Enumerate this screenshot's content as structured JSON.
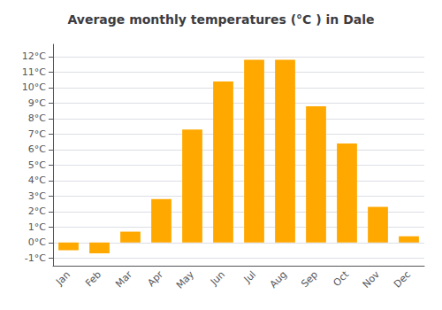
{
  "chart_data": {
    "type": "bar",
    "title": "Average monthly temperatures (°C ) in Dale",
    "categories": [
      "Jan",
      "Feb",
      "Mar",
      "Apr",
      "May",
      "Jun",
      "Jul",
      "Aug",
      "Sep",
      "Oct",
      "Nov",
      "Dec"
    ],
    "values": [
      -0.5,
      -0.7,
      0.7,
      2.8,
      7.3,
      10.4,
      11.8,
      11.8,
      8.8,
      6.4,
      2.3,
      0.4
    ],
    "color": "#FFA800",
    "ylim": [
      -1.5,
      12.8
    ],
    "yticks": [
      {
        "value": -1,
        "label": "-1°C"
      },
      {
        "value": 0,
        "label": "0°C"
      },
      {
        "value": 1,
        "label": "1°C"
      },
      {
        "value": 2,
        "label": "2°C"
      },
      {
        "value": 3,
        "label": "3°C"
      },
      {
        "value": 4,
        "label": "4°C"
      },
      {
        "value": 5,
        "label": "5°C"
      },
      {
        "value": 6,
        "label": "6°C"
      },
      {
        "value": 7,
        "label": "7°C"
      },
      {
        "value": 8,
        "label": "8°C"
      },
      {
        "value": 9,
        "label": "9°C"
      },
      {
        "value": 10,
        "label": "10°C"
      },
      {
        "value": 11,
        "label": "11°C"
      },
      {
        "value": 12,
        "label": "12°C"
      }
    ],
    "grid": true
  }
}
